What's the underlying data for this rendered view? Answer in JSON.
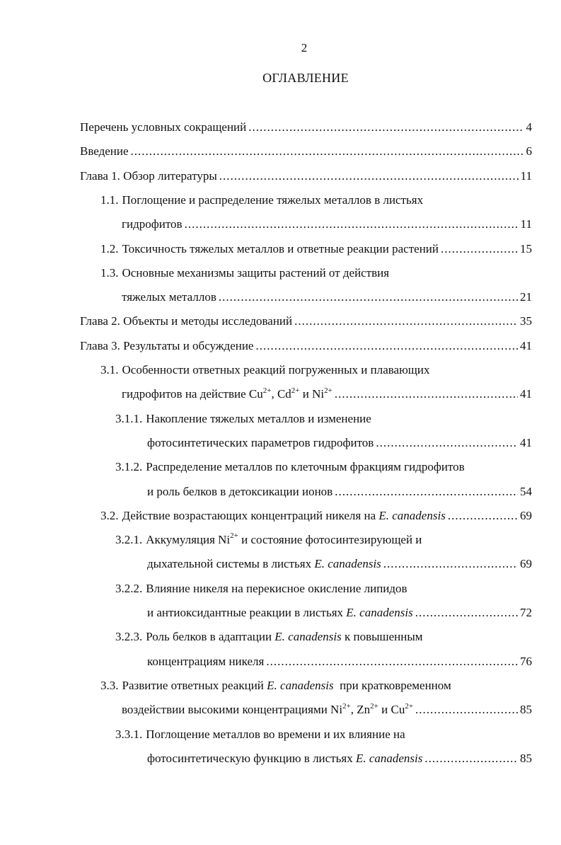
{
  "page_number": "2",
  "title": "ОГЛАВЛЕНИЕ",
  "entries": [
    {
      "level": 0,
      "lines": [
        [
          "Перечень условных сокращений"
        ]
      ],
      "page": "4"
    },
    {
      "level": 0,
      "lines": [
        [
          "Введение"
        ]
      ],
      "page": "6"
    },
    {
      "level": 0,
      "lines": [
        [
          "Глава 1. Обзор литературы"
        ]
      ],
      "page": "11"
    },
    {
      "level": 1,
      "number": "1.1.",
      "lines": [
        [
          "Поглощение и распределение тяжелых металлов в листьях"
        ],
        [
          "гидрофитов"
        ]
      ],
      "page": "11"
    },
    {
      "level": 1,
      "number": "1.2.",
      "lines": [
        [
          "Токсичность тяжелых металлов и ответные реакции растений"
        ]
      ],
      "page": "15"
    },
    {
      "level": 1,
      "number": "1.3.",
      "lines": [
        [
          "Основные механизмы защиты растений от действия"
        ],
        [
          "тяжелых металлов"
        ]
      ],
      "page": "21"
    },
    {
      "level": 0,
      "lines": [
        [
          "Глава 2. Объекты и методы исследований"
        ]
      ],
      "page": "35"
    },
    {
      "level": 0,
      "lines": [
        [
          "Глава 3. Результаты и обсуждение"
        ]
      ],
      "page": "41"
    },
    {
      "level": 1,
      "number": "3.1.",
      "lines": [
        [
          "Особенности ответных реакций погруженных и плавающих"
        ],
        [
          "гидрофитов на действие Cu",
          {
            "sup": "2+"
          },
          ", Cd",
          {
            "sup": "2+"
          },
          " и Ni",
          {
            "sup": "2+"
          }
        ]
      ],
      "page": "41"
    },
    {
      "level": 2,
      "number": "3.1.1.",
      "lines": [
        [
          "Накопление тяжелых металлов и изменение"
        ],
        [
          "фотосинтетических параметров гидрофитов"
        ]
      ],
      "page": "41"
    },
    {
      "level": 2,
      "number": "3.1.2.",
      "lines": [
        [
          "Распределение металлов по клеточным фракциям гидрофитов"
        ],
        [
          "и роль белков в детоксикации ионов"
        ]
      ],
      "page": "54"
    },
    {
      "level": 1,
      "number": "3.2.",
      "lines": [
        [
          "Действие возрастающих концентраций никеля на ",
          {
            "i": "E. canadensis"
          }
        ]
      ],
      "page": "69"
    },
    {
      "level": 2,
      "number": "3.2.1.",
      "lines": [
        [
          "Аккумуляция Ni",
          {
            "sup": "2+"
          },
          " и состояние фотосинтезирующей и"
        ],
        [
          "дыхательной системы в листьях ",
          {
            "i": "E. canadensis"
          }
        ]
      ],
      "page": "69"
    },
    {
      "level": 2,
      "number": "3.2.2.",
      "lines": [
        [
          "Влияние никеля на перекисное окисление липидов"
        ],
        [
          "и антиоксидантные реакции в листьях ",
          {
            "i": "E. canadensis"
          }
        ]
      ],
      "page": "72"
    },
    {
      "level": 2,
      "number": "3.2.3.",
      "lines": [
        [
          "Роль белков в адаптации ",
          {
            "i": "E. canadensis"
          },
          " к повышенным"
        ],
        [
          "концентрациям никеля"
        ]
      ],
      "page": "76"
    },
    {
      "level": 1,
      "number": "3.3.",
      "lines": [
        [
          "Развитие ответных реакций ",
          {
            "i": "E. canadensis"
          },
          "  при кратковременном"
        ],
        [
          "воздействии высокими концентрациями Ni",
          {
            "sup": "2+"
          },
          ", Zn",
          {
            "sup": "2+"
          },
          " и Cu",
          {
            "sup": "2+"
          }
        ]
      ],
      "page": "85"
    },
    {
      "level": 2,
      "number": "3.3.1.",
      "lines": [
        [
          "Поглощение металлов во времени и их влияние на"
        ],
        [
          "фотосинтетическую функцию в листьях ",
          {
            "i": "E. canadensis"
          }
        ]
      ],
      "page": "85"
    }
  ]
}
